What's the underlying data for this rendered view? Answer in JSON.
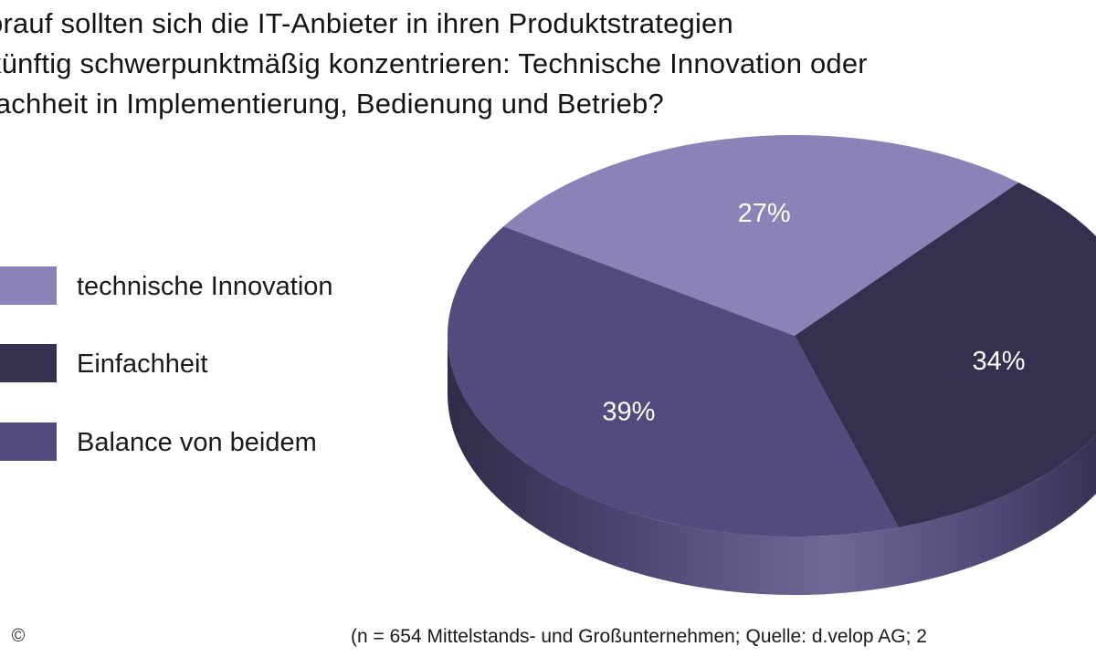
{
  "chart_data": {
    "type": "pie",
    "title_lines": [
      "orauf sollten sich die IT-Anbieter in ihren Produktstrategien",
      "künftig schwerpunktmäßig konzentrieren: Technische Innovation oder",
      "fachheit in Implementierung, Bedienung und Betrieb?"
    ],
    "slices": [
      {
        "name": "technische Innovation",
        "value": 27,
        "label": "27%",
        "color": "#8a83b8"
      },
      {
        "name": "Einfachheit",
        "value": 34,
        "label": "34%",
        "color": "#34304f"
      },
      {
        "name": "Balance von beidem",
        "value": 39,
        "label": "39%",
        "color": "#514b7e"
      }
    ],
    "legend_placement": "left",
    "footnote": "(n = 654 Mittelstands- und Großunternehmen; Quelle: d.velop AG; 2"
  },
  "icons": {
    "copyright": "©"
  }
}
